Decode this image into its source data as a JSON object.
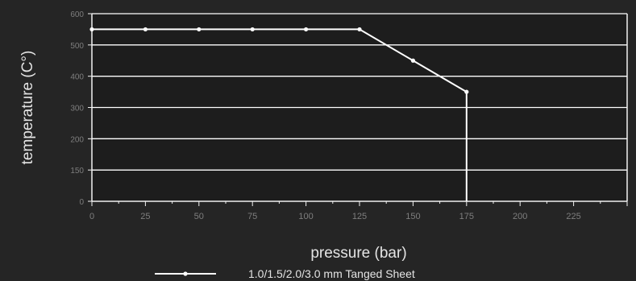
{
  "chart_data": {
    "type": "line",
    "title": "",
    "xlabel": "pressure (bar)",
    "ylabel": "temperature (C°)",
    "x_ticks": [
      "0",
      "25",
      "50",
      "75",
      "100",
      "125",
      "150",
      "175",
      "200",
      "225"
    ],
    "y_ticks": [
      "0",
      "150",
      "200",
      "300",
      "400",
      "500",
      "600"
    ],
    "xlim": [
      0,
      225
    ],
    "ylim": [
      0,
      600
    ],
    "grid": "horizontal",
    "legend_position": "bottom",
    "series": [
      {
        "name": "1.0/1.5/2.0/3.0 mm Tanged Sheet",
        "color": "#ffffff",
        "x": [
          0,
          25,
          50,
          75,
          100,
          125,
          150,
          175
        ],
        "y": [
          550,
          550,
          550,
          550,
          550,
          550,
          450,
          350
        ],
        "drop_to_axis_at": 175
      }
    ],
    "colors": {
      "background": "#252525",
      "plot_background": "#1d1d1d",
      "axis": "#f2f2f2",
      "gridline": "#ffffff",
      "text": "#e4e4e4",
      "tick_text": "#7e7e7e"
    }
  }
}
